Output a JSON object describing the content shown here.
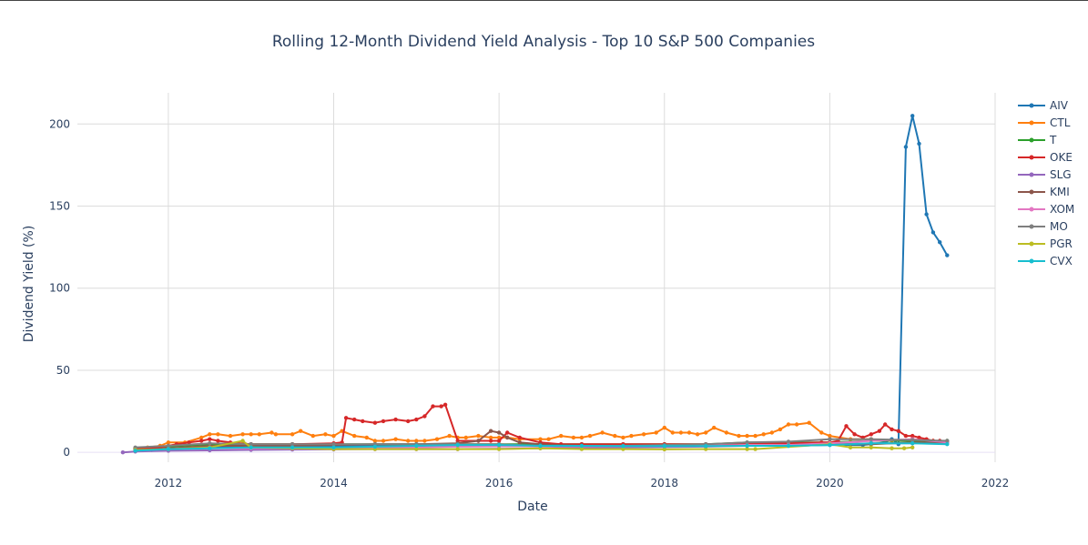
{
  "chart_data": {
    "type": "line",
    "title": "Rolling 12-Month Dividend Yield Analysis - Top 10 S&P 500 Companies",
    "xlabel": "Date",
    "ylabel": "Dividend Yield (%)",
    "xlim": [
      2010.9,
      2022.0
    ],
    "ylim": [
      -6,
      219
    ],
    "x_ticks": [
      2012,
      2014,
      2016,
      2018,
      2020,
      2022
    ],
    "x_tick_labels": [
      "2012",
      "2014",
      "2016",
      "2018",
      "2020",
      "2022"
    ],
    "y_ticks": [
      0,
      50,
      100,
      150,
      200
    ],
    "y_tick_labels": [
      "0",
      "50",
      "100",
      "150",
      "200"
    ],
    "grid": true,
    "legend_position": "right",
    "series": [
      {
        "name": "AIV",
        "color": "#1f77b4",
        "x": [
          2011.8,
          2012.5,
          2013.5,
          2014.5,
          2015.5,
          2016.5,
          2017.5,
          2018.5,
          2019.5,
          2020.0,
          2020.4,
          2020.67,
          2020.75,
          2020.83,
          2020.92,
          2021.0,
          2021.08,
          2021.17,
          2021.25,
          2021.33,
          2021.42
        ],
        "y": [
          1.5,
          3,
          3.5,
          4,
          4,
          4,
          4,
          4,
          4,
          4.5,
          4.5,
          6,
          8,
          5,
          186,
          205,
          188,
          145,
          134,
          128,
          120
        ]
      },
      {
        "name": "CTL",
        "color": "#ff7f0e",
        "x": [
          2011.6,
          2011.75,
          2011.9,
          2012.0,
          2012.2,
          2012.4,
          2012.5,
          2012.6,
          2012.75,
          2012.9,
          2013.0,
          2013.1,
          2013.25,
          2013.3,
          2013.5,
          2013.6,
          2013.75,
          2013.9,
          2014.0,
          2014.1,
          2014.25,
          2014.4,
          2014.5,
          2014.6,
          2014.75,
          2014.9,
          2015.0,
          2015.1,
          2015.25,
          2015.4,
          2015.5,
          2015.6,
          2015.75,
          2015.9,
          2016.0,
          2016.1,
          2016.25,
          2016.5,
          2016.6,
          2016.75,
          2016.9,
          2017.0,
          2017.1,
          2017.25,
          2017.4,
          2017.5,
          2017.6,
          2017.75,
          2017.9,
          2018.0,
          2018.1,
          2018.2,
          2018.3,
          2018.4,
          2018.5,
          2018.6,
          2018.75,
          2018.9,
          2019.0,
          2019.1,
          2019.2,
          2019.3,
          2019.4,
          2019.5,
          2019.6,
          2019.75,
          2019.9,
          2020.0,
          2020.25,
          2020.5,
          2020.75,
          2021.0,
          2021.25,
          2021.42
        ],
        "y": [
          2.5,
          3,
          4,
          6,
          6,
          9,
          11,
          11,
          10,
          11,
          11,
          11,
          12,
          11,
          11,
          13,
          10,
          11,
          10,
          13,
          10,
          9,
          7,
          7,
          8,
          7,
          7,
          7,
          8,
          10,
          9,
          9,
          10,
          9,
          9,
          9,
          8,
          8,
          8,
          10,
          9,
          9,
          10,
          12,
          10,
          9,
          10,
          11,
          12,
          15,
          12,
          12,
          12,
          11,
          12,
          15,
          12,
          10,
          10,
          10,
          11,
          12,
          14,
          17,
          17,
          18,
          12,
          10,
          8,
          8,
          7,
          8,
          7,
          6
        ]
      },
      {
        "name": "T",
        "color": "#2ca02c",
        "x": [
          2011.6,
          2012.0,
          2012.5,
          2013.0,
          2013.5,
          2014.0,
          2014.5,
          2015.0,
          2015.5,
          2016.0,
          2016.5,
          2017.0,
          2017.5,
          2018.0,
          2018.5,
          2019.0,
          2019.5,
          2020.0,
          2020.5,
          2021.0,
          2021.42
        ],
        "y": [
          2,
          3.5,
          5,
          5,
          5,
          5,
          5,
          5,
          5,
          5,
          5,
          5,
          5,
          5,
          5,
          6,
          6,
          6,
          7,
          7,
          7
        ]
      },
      {
        "name": "OKE",
        "color": "#d62728",
        "x": [
          2011.6,
          2011.75,
          2011.9,
          2012.0,
          2012.1,
          2012.25,
          2012.4,
          2012.5,
          2012.6,
          2012.75,
          2013.0,
          2013.5,
          2014.0,
          2014.1,
          2014.15,
          2014.25,
          2014.35,
          2014.5,
          2014.6,
          2014.75,
          2014.9,
          2015.0,
          2015.1,
          2015.2,
          2015.3,
          2015.35,
          2015.5,
          2015.75,
          2015.9,
          2016.0,
          2016.1,
          2016.25,
          2016.5,
          2016.75,
          2017.0,
          2017.5,
          2018.0,
          2018.5,
          2019.0,
          2019.5,
          2019.9,
          2020.0,
          2020.1,
          2020.2,
          2020.3,
          2020.4,
          2020.5,
          2020.6,
          2020.67,
          2020.75,
          2020.83,
          2020.92,
          2021.0,
          2021.08,
          2021.17,
          2021.25,
          2021.33,
          2021.42
        ],
        "y": [
          2,
          2.5,
          3,
          4,
          5,
          6,
          7,
          8,
          7,
          6,
          5,
          5,
          5.5,
          6,
          21,
          20,
          19,
          18,
          19,
          20,
          19,
          20,
          22,
          28,
          28,
          29,
          7,
          7,
          7,
          7,
          12,
          9,
          6,
          5,
          5,
          5,
          5,
          5,
          5.5,
          5.5,
          6,
          6,
          7,
          16,
          11,
          9,
          11,
          13,
          17,
          14,
          13,
          10,
          10,
          9,
          8,
          7,
          7,
          6
        ]
      },
      {
        "name": "SLG",
        "color": "#9467bd",
        "x": [
          2011.45,
          2011.6,
          2012.0,
          2012.5,
          2013.0,
          2013.5,
          2014.0,
          2014.5,
          2015.0,
          2015.5,
          2016.0,
          2016.5,
          2017.0,
          2017.5,
          2018.0,
          2018.5,
          2019.0,
          2019.5,
          2020.0,
          2020.5,
          2021.0,
          2021.42
        ],
        "y": [
          0,
          0.5,
          1,
          1.2,
          1.5,
          1.7,
          1.8,
          2,
          2,
          2,
          2.2,
          2.5,
          2.8,
          3,
          3.2,
          3.5,
          4,
          4.5,
          5,
          5.5,
          5.5,
          6
        ]
      },
      {
        "name": "KMI",
        "color": "#8c564b",
        "x": [
          2011.6,
          2012.0,
          2012.5,
          2013.0,
          2013.5,
          2014.0,
          2014.5,
          2015.0,
          2015.5,
          2015.75,
          2015.9,
          2016.0,
          2016.1,
          2016.25,
          2016.5,
          2017.0,
          2017.5,
          2018.0,
          2018.5,
          2019.0,
          2019.5,
          2020.0,
          2020.5,
          2021.0,
          2021.42
        ],
        "y": [
          1,
          2.5,
          4,
          4,
          4,
          4.5,
          5,
          5,
          5.5,
          7,
          13,
          12,
          9,
          6,
          5,
          4,
          4,
          4,
          4,
          4,
          4.5,
          5,
          5,
          6,
          6
        ]
      },
      {
        "name": "XOM",
        "color": "#e377c2",
        "x": [
          2011.6,
          2012.0,
          2012.5,
          2013.0,
          2013.5,
          2014.0,
          2014.5,
          2015.0,
          2015.5,
          2016.0,
          2016.5,
          2017.0,
          2017.5,
          2018.0,
          2018.5,
          2019.0,
          2019.5,
          2020.0,
          2020.5,
          2021.0,
          2021.42
        ],
        "y": [
          1,
          2,
          2.5,
          2.5,
          2.5,
          2.5,
          2.8,
          3,
          3.5,
          3.7,
          3.7,
          3.7,
          3.8,
          4,
          4.2,
          4.5,
          4.5,
          5.5,
          7,
          8,
          6
        ]
      },
      {
        "name": "MO",
        "color": "#7f7f7f",
        "x": [
          2011.6,
          2012.0,
          2012.5,
          2013.0,
          2013.5,
          2014.0,
          2014.5,
          2015.0,
          2015.5,
          2016.0,
          2016.5,
          2017.0,
          2017.5,
          2018.0,
          2018.5,
          2019.0,
          2019.5,
          2020.0,
          2020.5,
          2021.0,
          2021.42
        ],
        "y": [
          3,
          4,
          5.5,
          5,
          5,
          5,
          5,
          5,
          5,
          5,
          4,
          4,
          4,
          4.5,
          5,
          6,
          6.5,
          8,
          8,
          7.5,
          7
        ]
      },
      {
        "name": "PGR",
        "color": "#bcbd22",
        "x": [
          2011.6,
          2012.0,
          2012.5,
          2012.9,
          2013.0,
          2013.5,
          2014.0,
          2014.5,
          2015.0,
          2015.5,
          2016.0,
          2016.5,
          2017.0,
          2017.5,
          2018.0,
          2018.5,
          2019.0,
          2019.1,
          2020.0,
          2020.25,
          2020.5,
          2020.75,
          2020.9,
          2021.0
        ],
        "y": [
          1.5,
          2,
          3,
          7,
          3,
          2.5,
          2,
          2,
          2,
          2,
          2,
          2.5,
          2,
          2,
          1.8,
          2,
          2,
          2,
          5,
          3,
          3,
          2.5,
          2.5,
          3
        ]
      },
      {
        "name": "CVX",
        "color": "#17becf",
        "x": [
          2011.6,
          2012.0,
          2012.5,
          2013.0,
          2013.5,
          2014.0,
          2014.5,
          2015.0,
          2015.5,
          2016.0,
          2016.5,
          2017.0,
          2017.5,
          2018.0,
          2018.5,
          2019.0,
          2019.5,
          2020.0,
          2020.5,
          2021.0,
          2021.42
        ],
        "y": [
          1,
          2,
          2.5,
          3,
          3,
          3,
          3.5,
          4,
          4.5,
          4.5,
          4,
          4,
          3.8,
          3.8,
          3.8,
          4,
          4,
          4.5,
          5.5,
          5.5,
          5
        ]
      }
    ]
  }
}
